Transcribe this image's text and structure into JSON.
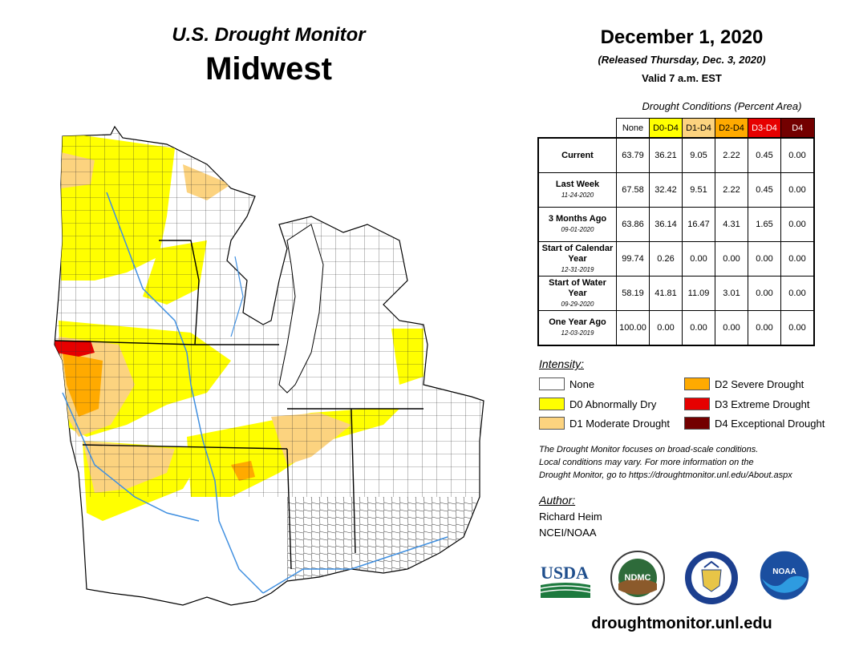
{
  "header": {
    "title": "U.S. Drought Monitor",
    "region": "Midwest",
    "date": "December 1, 2020",
    "released": "(Released Thursday, Dec. 3, 2020)",
    "valid": "Valid 7 a.m. EST"
  },
  "table": {
    "caption": "Drought Conditions (Percent Area)",
    "columns": [
      "None",
      "D0-D4",
      "D1-D4",
      "D2-D4",
      "D3-D4",
      "D4"
    ],
    "column_colors": [
      "#ffffff",
      "#ffff00",
      "#fcd37f",
      "#ffaa00",
      "#e60000",
      "#730000"
    ],
    "rows": [
      {
        "label": "Current",
        "date": "",
        "values": [
          "63.79",
          "36.21",
          "9.05",
          "2.22",
          "0.45",
          "0.00"
        ]
      },
      {
        "label": "Last Week",
        "date": "11-24-2020",
        "values": [
          "67.58",
          "32.42",
          "9.51",
          "2.22",
          "0.45",
          "0.00"
        ]
      },
      {
        "label": "3 Months Ago",
        "date": "09-01-2020",
        "values": [
          "63.86",
          "36.14",
          "16.47",
          "4.31",
          "1.65",
          "0.00"
        ]
      },
      {
        "label": "Start of Calendar Year",
        "date": "12-31-2019",
        "values": [
          "99.74",
          "0.26",
          "0.00",
          "0.00",
          "0.00",
          "0.00"
        ]
      },
      {
        "label": "Start of Water Year",
        "date": "09-29-2020",
        "values": [
          "58.19",
          "41.81",
          "11.09",
          "3.01",
          "0.00",
          "0.00"
        ]
      },
      {
        "label": "One Year Ago",
        "date": "12-03-2019",
        "values": [
          "100.00",
          "0.00",
          "0.00",
          "0.00",
          "0.00",
          "0.00"
        ]
      }
    ]
  },
  "legend": {
    "heading": "Intensity:",
    "items": [
      {
        "label": "None",
        "color": "#ffffff"
      },
      {
        "label": "D0 Abnormally Dry",
        "color": "#ffff00"
      },
      {
        "label": "D1 Moderate Drought",
        "color": "#fcd37f"
      },
      {
        "label": "D2 Severe Drought",
        "color": "#ffaa00"
      },
      {
        "label": "D3 Extreme Drought",
        "color": "#e60000"
      },
      {
        "label": "D4 Exceptional Drought",
        "color": "#730000"
      }
    ]
  },
  "note": {
    "line1": "The Drought Monitor focuses on broad-scale conditions.",
    "line2": "Local conditions may vary. For more information on the",
    "line3": "Drought Monitor, go to https://droughtmonitor.unl.edu/About.aspx"
  },
  "author": {
    "heading": "Author:",
    "name": "Richard Heim",
    "org": "NCEI/NOAA"
  },
  "logos": {
    "usda": "USDA",
    "ndmc": "NDMC",
    "noaa": "NOAA"
  },
  "website": "droughtmonitor.unl.edu",
  "map_colors": {
    "water": "#6ab0e6",
    "river": "#3f8fe0",
    "state_border": "#000000"
  }
}
